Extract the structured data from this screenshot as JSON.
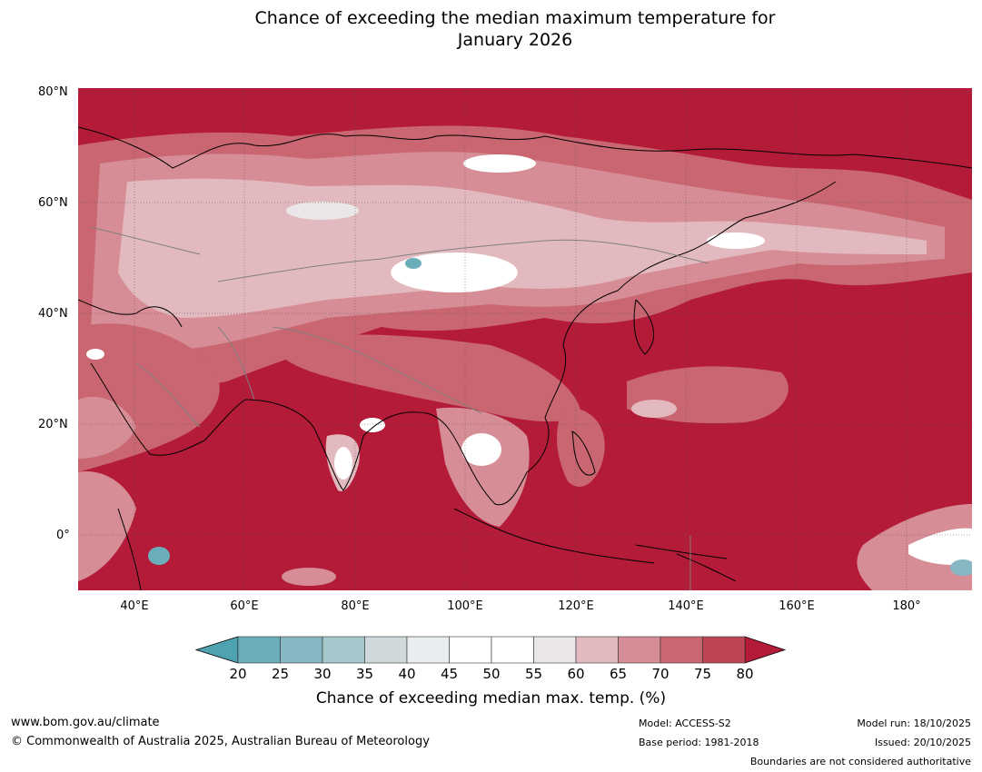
{
  "title_line1": "Chance of exceeding the median maximum temperature for",
  "title_line2": "January 2026",
  "lat_labels": [
    "80°N",
    "60°N",
    "40°N",
    "20°N",
    "0°"
  ],
  "lon_labels": [
    "40°E",
    "60°E",
    "80°E",
    "100°E",
    "120°E",
    "140°E",
    "160°E",
    "180°"
  ],
  "colorbar": {
    "ticks": [
      "20",
      "25",
      "30",
      "35",
      "40",
      "45",
      "50",
      "55",
      "60",
      "65",
      "70",
      "75",
      "80"
    ],
    "colors": [
      "#6aaeba",
      "#87b7c2",
      "#a6c7cc",
      "#cfd8da",
      "#e8eef0",
      "#ffffff",
      "#ffffff",
      "#ebe6e7",
      "#e2b9be",
      "#d68d95",
      "#c96671",
      "#bd4553"
    ],
    "low_color": "#4fa2b0",
    "high_color": "#b41b39",
    "label": "Chance of exceeding median max. temp. (%)"
  },
  "map_colors": {
    "base": "#b41b39",
    "coast": "#000000",
    "border": "#808080"
  },
  "footer": {
    "url": "www.bom.gov.au/climate",
    "copyright": "© Commonwealth of Australia 2025, Australian Bureau of Meteorology",
    "model": "Model: ACCESS-S2",
    "base_period": "Base period: 1981-2018",
    "model_run": "Model run: 18/10/2025",
    "issued": "Issued: 20/10/2025",
    "disclaimer": "Boundaries are not considered authoritative"
  }
}
